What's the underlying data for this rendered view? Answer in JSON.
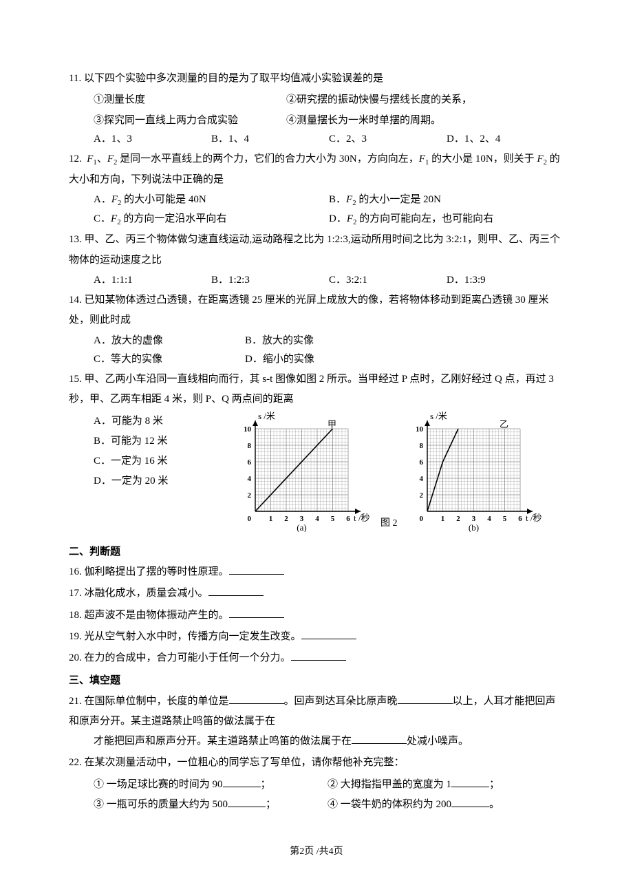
{
  "q11": {
    "stem": "11.  以下四个实验中多次测量的目的是为了取平均值减小实验误差的是",
    "s1": "①测量长度",
    "s2": "②研究摆的振动快慢与摆线长度的关系，",
    "s3": "③探究同一直线上两力合成实验",
    "s4": "④测量摆长为一米时单摆的周期。",
    "A": "A．1、3",
    "B": "B．1、4",
    "C": "C．2、3",
    "D": "D．1、2、4"
  },
  "q12": {
    "stem": "12.  F₁、F₂ 是同一水平直线上的两个力，它们的合力大小为 30N，方向向左，F₁ 的大小是10N，则关于 F₂ 的大小和方向，下列说法中正确的是",
    "A": "A．F₂ 的大小可能是 40N",
    "B": "B．F₂ 的大小一定是 20N",
    "C": "C．F₂ 的方向一定沿水平向右",
    "D": "D．F₂ 的方向可能向左，也可能向右"
  },
  "q13": {
    "stem": "13.  甲、乙、丙三个物体做匀速直线运动,运动路程之比为 1:2:3,运动所用时间之比为 3:2:1，则甲、乙、丙三个物体的运动速度之比",
    "A": "A．1:1:1",
    "B": "B．1:2:3",
    "C": "C．3:2:1",
    "D": "D．1:3:9"
  },
  "q14": {
    "stem": "14.  已知某物体透过凸透镜，在距离透镜 25 厘米的光屏上成放大的像，若将物体移动到距离凸透镜 30 厘米处，则此时成",
    "A": "A．放大的虚像",
    "B": "B．放大的实像",
    "C": "C．等大的实像",
    "D": "D．缩小的实像"
  },
  "q15": {
    "stem": "15.  甲、乙两小车沿同一直线相向而行，其 s-t 图像如图 2 所示。当甲经过 P 点时，乙刚好经过 Q 点，再过 3 秒，甲、乙两车相距 4 米，则 P、Q 两点间的距离",
    "A": "A．可能为 8 米",
    "B": "B．可能为 12 米",
    "C": "C．一定为 16 米",
    "D": "D．一定为 20 米",
    "figlabel": "图 2",
    "chart_a": {
      "ylabel": "s /米",
      "xlabel": "t /秒",
      "series_label": "甲",
      "ymax": 10,
      "xmax": 6,
      "xticks": [
        1,
        2,
        3,
        4,
        5,
        6
      ],
      "yticks": [
        2,
        4,
        6,
        8,
        10
      ],
      "line": [
        [
          0,
          0
        ],
        [
          5,
          10
        ]
      ],
      "caption": "(a)"
    },
    "chart_b": {
      "ylabel": "s /米",
      "xlabel": "t /秒",
      "series_label": "乙",
      "ymax": 10,
      "xmax": 6,
      "xticks": [
        1,
        2,
        3,
        4,
        5,
        6
      ],
      "yticks": [
        2,
        4,
        6,
        8,
        10
      ],
      "line": [
        [
          0,
          0
        ],
        [
          1,
          6
        ],
        [
          2,
          10
        ]
      ],
      "caption": "(b)"
    },
    "style": {
      "axis_color": "#000000",
      "grid_color": "#808080",
      "grid_stroke": 0.6,
      "line_color": "#000000",
      "line_width": 1.6,
      "tick_fontsize": 11,
      "label_fontsize": 13
    }
  },
  "sec2": "二、判断题",
  "q16": "16.  伽利略提出了摆的等时性原理。",
  "q17": "17.  冰融化成水，质量会减小。",
  "q18": "18.  超声波不是由物体振动产生的。",
  "q19": "19.  光从空气射入水中时，传播方向一定发生改变。",
  "q20": "20.  在力的合成中，合力可能小于任何一个分力。",
  "sec3": "三、填空题",
  "q21": {
    "p1": "21.  在国际单位制中，长度的单位是",
    "p2": "。回声到达耳朵比原声晚",
    "p3": "以上，人耳才能把回声和原声分开。某主道路禁止鸣笛的做法属于在",
    "p4": "处减小噪声。"
  },
  "q22": {
    "stem": "22.  在某次测量活动中，一位粗心的同学忘了写单位，请你帮他补充完整：",
    "s1a": "①  一场足球比赛的时间为 90",
    "s1b": "；",
    "s2a": "②  大拇指指甲盖的宽度为 1",
    "s2b": "；",
    "s3a": "③  一瓶可乐的质量大约为 500",
    "s3b": "；",
    "s4a": "④  一袋牛奶的体积约为 200",
    "s4b": "。"
  },
  "footer": "第2页 /共4页"
}
